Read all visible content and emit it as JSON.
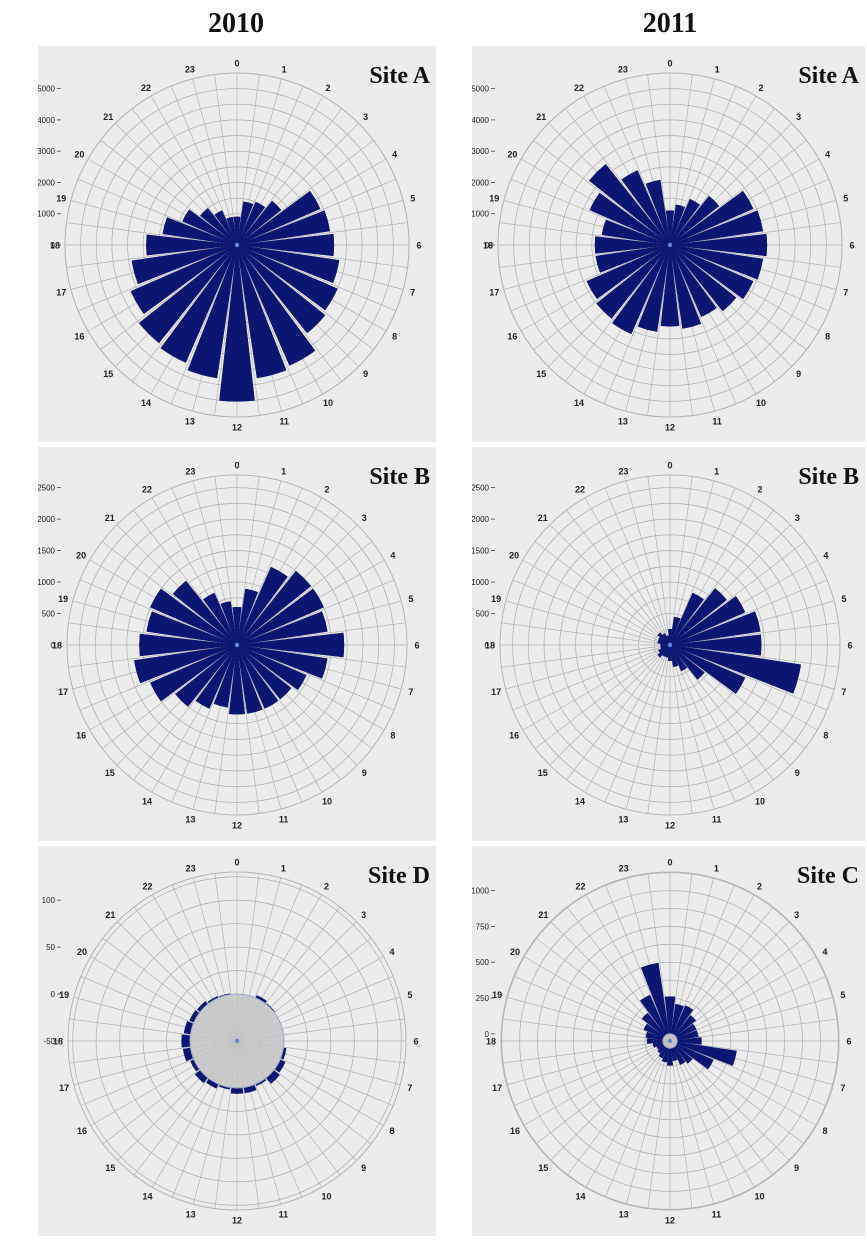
{
  "columns": [
    "2010",
    "2011"
  ],
  "colors": {
    "bar": "#0b1673",
    "grid": "#b4b4b4",
    "panel_bg": "#ececec",
    "zero_disc": "#c4c4c4"
  },
  "hour_labels": [
    "0",
    "1",
    "2",
    "3",
    "4",
    "5",
    "6",
    "7",
    "8",
    "9",
    "10",
    "11",
    "12",
    "13",
    "14",
    "15",
    "16",
    "17",
    "18",
    "19",
    "20",
    "21",
    "22",
    "23"
  ],
  "chart_data": [
    {
      "type": "bar",
      "polar": true,
      "title": "Site A",
      "year": "2010",
      "ylim": [
        0,
        5500
      ],
      "rings": [
        0,
        1000,
        2000,
        3000,
        4000,
        5000
      ],
      "ytick_labels": [
        "5000",
        "4000",
        "3000",
        "2000",
        "1000",
        "0"
      ],
      "hours": [
        "0",
        "1",
        "2",
        "3",
        "4",
        "5",
        "6",
        "7",
        "8",
        "9",
        "10",
        "11",
        "12",
        "13",
        "14",
        "15",
        "16",
        "17",
        "18",
        "19",
        "20",
        "21",
        "22",
        "23"
      ],
      "values": [
        900,
        1400,
        1500,
        1800,
        2900,
        3000,
        3100,
        3300,
        3500,
        3600,
        4200,
        4300,
        5000,
        4300,
        4100,
        4000,
        3700,
        3400,
        2900,
        2400,
        1900,
        1500,
        1200,
        900
      ]
    },
    {
      "type": "bar",
      "polar": true,
      "title": "Site A",
      "year": "2011",
      "ylim": [
        0,
        5500
      ],
      "rings": [
        0,
        1000,
        2000,
        3000,
        4000,
        5000
      ],
      "ytick_labels": [
        "5000",
        "4000",
        "3000",
        "2000",
        "1000",
        "0"
      ],
      "hours": [
        "0",
        "1",
        "2",
        "3",
        "4",
        "5",
        "6",
        "7",
        "8",
        "9",
        "10",
        "11",
        "12",
        "13",
        "14",
        "15",
        "16",
        "17",
        "18",
        "19",
        "20",
        "21",
        "22",
        "23"
      ],
      "values": [
        1100,
        1300,
        1600,
        2000,
        2900,
        3000,
        3100,
        3000,
        2900,
        2700,
        2500,
        2700,
        2600,
        2800,
        3100,
        3000,
        2900,
        2400,
        2400,
        2200,
        2800,
        3300,
        2600,
        2100
      ]
    },
    {
      "type": "bar",
      "polar": true,
      "title": "Site B",
      "year": "2010",
      "ylim": [
        0,
        2700
      ],
      "rings": [
        0,
        500,
        1000,
        1500,
        2000,
        2500
      ],
      "ytick_labels": [
        "2500",
        "2000",
        "1500",
        "1000",
        "500",
        "0"
      ],
      "hours": [
        "0",
        "1",
        "2",
        "3",
        "4",
        "5",
        "6",
        "7",
        "8",
        "9",
        "10",
        "11",
        "12",
        "13",
        "14",
        "15",
        "16",
        "17",
        "18",
        "19",
        "20",
        "21",
        "22",
        "23"
      ],
      "values": [
        600,
        900,
        1350,
        1500,
        1500,
        1450,
        1700,
        1450,
        1200,
        1100,
        1100,
        1100,
        1100,
        1000,
        1100,
        1250,
        1500,
        1650,
        1550,
        1450,
        1500,
        1300,
        900,
        700
      ]
    },
    {
      "type": "bar",
      "polar": true,
      "title": "Site B",
      "year": "2011",
      "ylim": [
        0,
        2700
      ],
      "rings": [
        0,
        500,
        1000,
        1500,
        2000,
        2500
      ],
      "ytick_labels": [
        "2500",
        "2000",
        "1500",
        "1000",
        "500",
        "0"
      ],
      "hours": [
        "0",
        "1",
        "2",
        "3",
        "4",
        "5",
        "6",
        "7",
        "8",
        "9",
        "10",
        "11",
        "12",
        "13",
        "14",
        "15",
        "16",
        "17",
        "18",
        "19",
        "20",
        "21",
        "22",
        "23"
      ],
      "values": [
        250,
        450,
        900,
        1150,
        1300,
        1450,
        1450,
        2100,
        1300,
        700,
        450,
        350,
        250,
        200,
        200,
        250,
        200,
        150,
        150,
        200,
        200,
        250,
        200,
        150
      ]
    },
    {
      "type": "bar",
      "polar": true,
      "title": "Site D",
      "year": "2010",
      "ylim": [
        -50,
        130
      ],
      "rings": [
        -50,
        0,
        50,
        100
      ],
      "ytick_labels": [
        "100",
        "50",
        "0",
        "-50"
      ],
      "hours": [
        "0",
        "1",
        "2",
        "3",
        "4",
        "5",
        "6",
        "7",
        "8",
        "9",
        "10",
        "11",
        "12",
        "13",
        "14",
        "15",
        "16",
        "17",
        "18",
        "19",
        "20",
        "21",
        "22",
        "23"
      ],
      "values": [
        0,
        0,
        3,
        1,
        0,
        0,
        0,
        3,
        6,
        8,
        2,
        6,
        6,
        2,
        5,
        7,
        4,
        8,
        9,
        7,
        5,
        4,
        2,
        1
      ]
    },
    {
      "type": "bar",
      "polar": true,
      "title": "Site C",
      "year": "2011",
      "ylim": [
        -50,
        1130
      ],
      "rings": [
        0,
        250,
        500,
        750,
        1000
      ],
      "ytick_labels": [
        "1000",
        "750",
        "500",
        "250",
        "0"
      ],
      "hours": [
        "0",
        "1",
        "2",
        "3",
        "4",
        "5",
        "6",
        "7",
        "8",
        "9",
        "10",
        "11",
        "12",
        "13",
        "14",
        "15",
        "16",
        "17",
        "18",
        "19",
        "20",
        "21",
        "22",
        "23"
      ],
      "values": [
        260,
        210,
        220,
        180,
        150,
        150,
        170,
        420,
        280,
        150,
        130,
        90,
        120,
        100,
        80,
        60,
        50,
        70,
        110,
        120,
        150,
        200,
        300,
        500
      ]
    }
  ]
}
